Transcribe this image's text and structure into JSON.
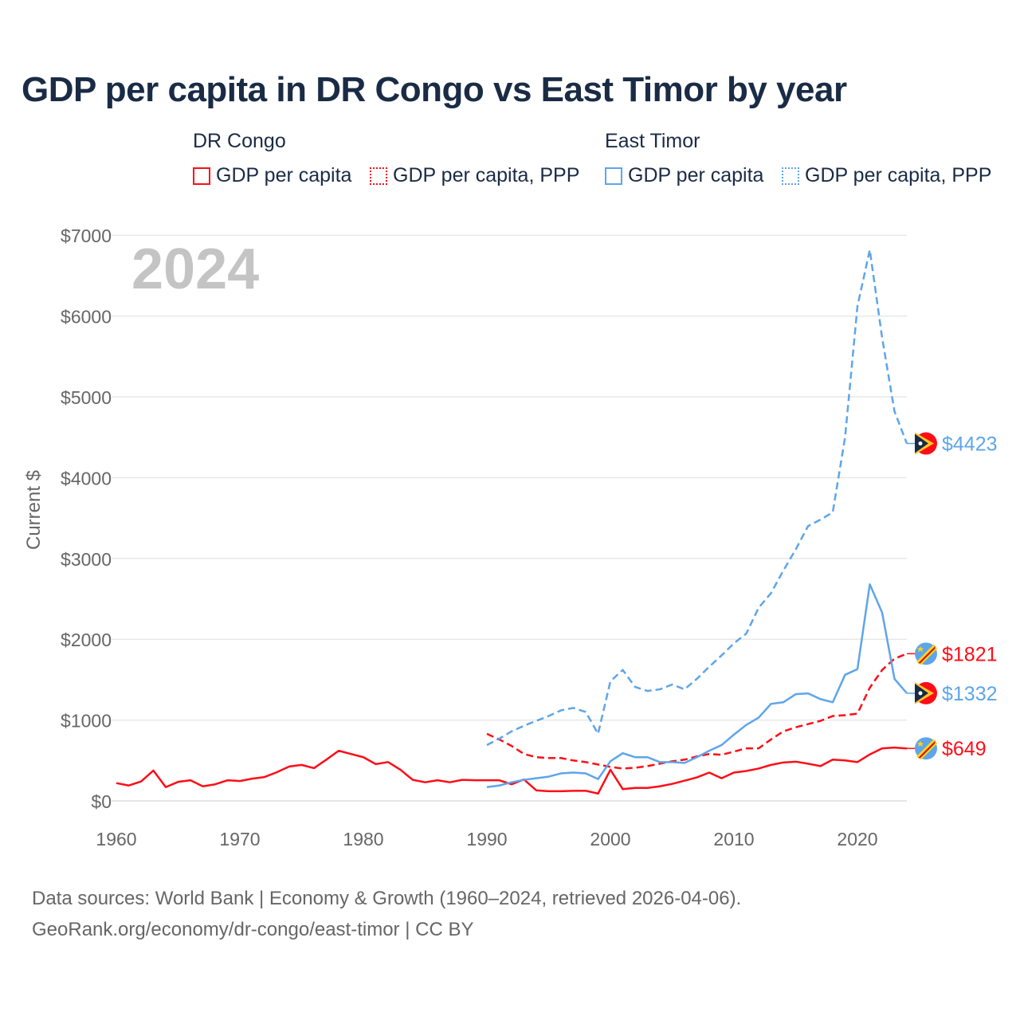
{
  "title": "GDP per capita in DR Congo vs East Timor by year",
  "legend": {
    "groups": [
      {
        "name": "DR Congo",
        "items": [
          "GDP per capita",
          "GDP per capita, PPP"
        ]
      },
      {
        "name": "East Timor",
        "items": [
          "GDP per capita",
          "GDP per capita, PPP"
        ]
      }
    ]
  },
  "year_watermark": "2024",
  "footer": {
    "line1": "Data sources: World Bank | Economy & Growth (1960–2024, retrieved 2026-04-06).",
    "line2": "GeoRank.org/economy/dr-congo/east-timor | CC BY"
  },
  "colors": {
    "dr_congo": "#ff0d17",
    "east_timor": "#5ea5ea",
    "text": "#1a2b45",
    "axis": "#666666"
  },
  "chart_data": {
    "type": "line",
    "title": "GDP per capita in DR Congo vs East Timor by year",
    "xlabel": "",
    "ylabel": "Current $",
    "xlim": [
      1960,
      2024
    ],
    "ylim": [
      0,
      7000
    ],
    "xticks": [
      "1960",
      "1970",
      "1980",
      "1990",
      "2000",
      "2010",
      "2020"
    ],
    "yticks": [
      "$0",
      "$1000",
      "$2000",
      "$3000",
      "$4000",
      "$5000",
      "$6000",
      "$7000"
    ],
    "grid": true,
    "series": [
      {
        "name": "DR Congo GDP per capita",
        "country": "dr_congo",
        "style": "solid",
        "start": 1960,
        "end_label": "$649",
        "values": [
          220,
          190,
          240,
          375,
          170,
          235,
          255,
          180,
          205,
          255,
          245,
          275,
          295,
          355,
          425,
          445,
          405,
          510,
          620,
          580,
          540,
          455,
          480,
          385,
          260,
          230,
          255,
          230,
          260,
          255,
          255,
          255,
          205,
          265,
          130,
          120,
          120,
          125,
          125,
          90,
          385,
          145,
          160,
          160,
          180,
          210,
          250,
          290,
          350,
          280,
          350,
          370,
          400,
          445,
          475,
          485,
          460,
          430,
          510,
          500,
          480,
          575,
          650,
          660,
          649
        ]
      },
      {
        "name": "DR Congo GDP per capita, PPP",
        "country": "dr_congo",
        "style": "dashed",
        "start": 1990,
        "end_label": "$1821",
        "values": [
          830,
          760,
          680,
          580,
          540,
          530,
          530,
          500,
          480,
          450,
          420,
          400,
          410,
          430,
          460,
          490,
          510,
          550,
          580,
          570,
          610,
          650,
          650,
          760,
          860,
          910,
          950,
          990,
          1050,
          1060,
          1080,
          1400,
          1620,
          1760,
          1821
        ]
      },
      {
        "name": "East Timor GDP per capita",
        "country": "east_timor",
        "style": "solid",
        "start": 1990,
        "end_label": "$1332",
        "values": [
          170,
          190,
          230,
          260,
          280,
          300,
          340,
          350,
          340,
          270,
          490,
          590,
          540,
          540,
          480,
          480,
          470,
          540,
          620,
          690,
          820,
          940,
          1030,
          1200,
          1220,
          1320,
          1330,
          1260,
          1220,
          1560,
          1630,
          2680,
          2330,
          1510,
          1332
        ]
      },
      {
        "name": "East Timor GDP per capita, PPP",
        "country": "east_timor",
        "style": "dashed",
        "start": 1990,
        "end_label": "$4423",
        "values": [
          690,
          770,
          860,
          930,
          990,
          1050,
          1120,
          1150,
          1100,
          830,
          1480,
          1620,
          1410,
          1360,
          1380,
          1440,
          1380,
          1510,
          1660,
          1800,
          1950,
          2070,
          2390,
          2570,
          2850,
          3110,
          3400,
          3480,
          3570,
          4500,
          6120,
          6820,
          5730,
          4820,
          4423
        ]
      }
    ]
  }
}
